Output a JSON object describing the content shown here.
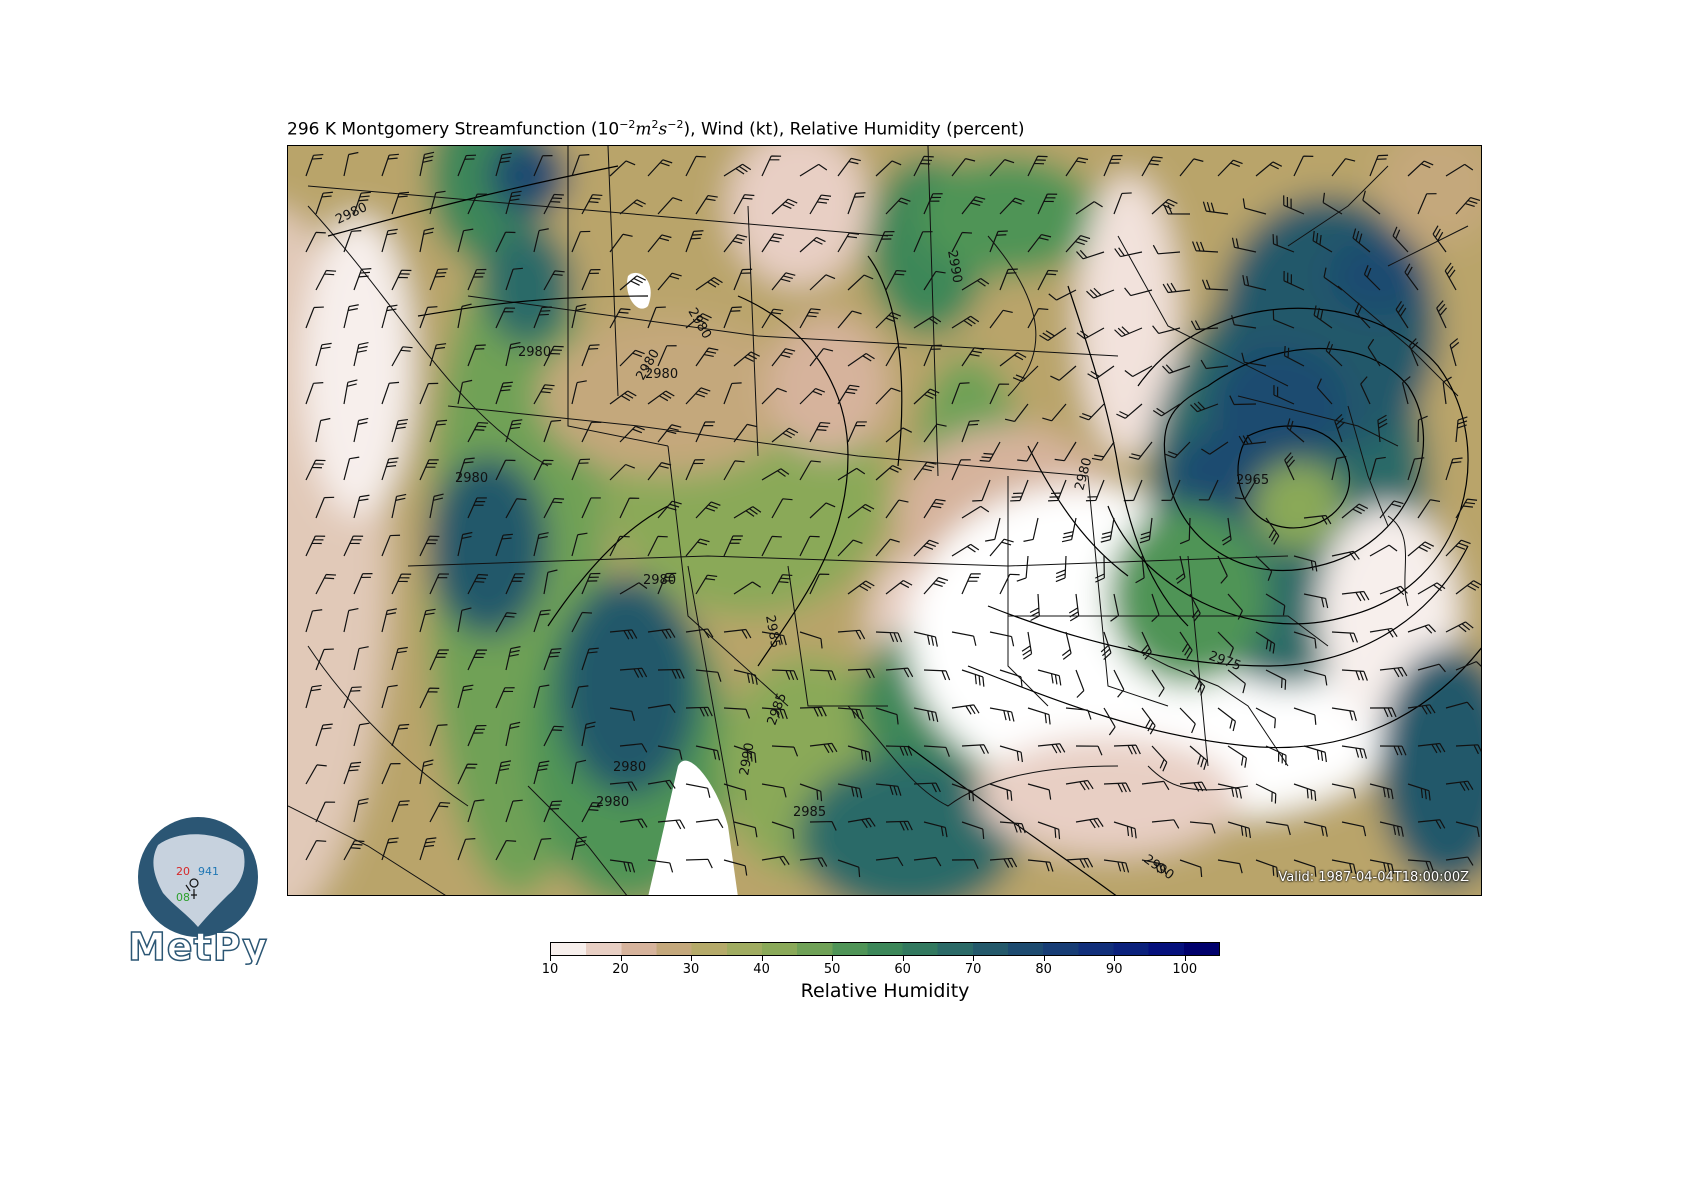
{
  "title": {
    "prefix": "296 K Montgomery Streamfunction (10",
    "exp1": "−2",
    "units_m": "m",
    "exp2": "2",
    "units_s": "s",
    "exp3": "−2",
    "suffix": "), Wind (kt), Relative Humidity (percent)"
  },
  "valid_label": "Valid: 1987-04-04T18:00:00Z",
  "colorbar": {
    "label": "Relative Humidity",
    "ticks": [
      "10",
      "20",
      "30",
      "40",
      "50",
      "60",
      "70",
      "80",
      "90",
      "100"
    ],
    "min": 10,
    "max": 105,
    "colors": [
      "#f7efec",
      "#e8cfc4",
      "#d6b39c",
      "#c4a87c",
      "#b5aa6a",
      "#a0ac61",
      "#8aa959",
      "#6fa157",
      "#4f9457",
      "#3c8759",
      "#32795f",
      "#2b6a67",
      "#24596b",
      "#1d4b70",
      "#173d75",
      "#112f7a",
      "#0b217c",
      "#05107c",
      "#00006c"
    ]
  },
  "contour_labels": [
    "2980",
    "2980",
    "2980",
    "2990",
    "2980",
    "2980",
    "2980",
    "2985",
    "2980",
    "2985",
    "2980",
    "2965",
    "2975",
    "2990",
    "2980",
    "2985",
    "2980",
    "2990"
  ],
  "logo": {
    "text": "MetPy",
    "station_temp": "20",
    "station_pressure": "941",
    "station_dewpoint": "08",
    "colors": {
      "temp": "#d62728",
      "pressure": "#1f77b4",
      "dew": "#2ca02c",
      "globe": "#2b5674",
      "land": "#c7d2de"
    }
  }
}
